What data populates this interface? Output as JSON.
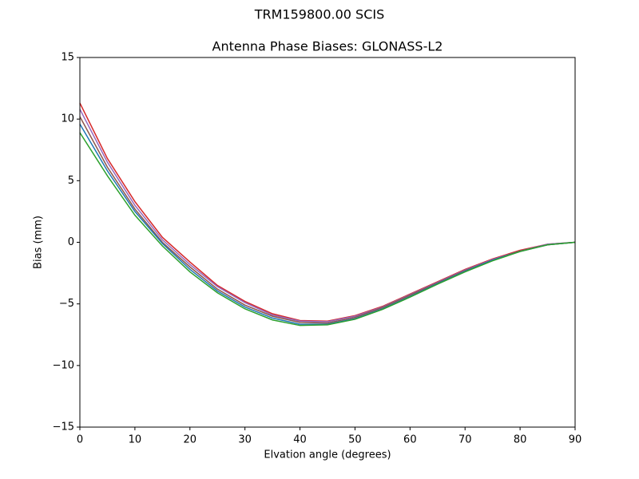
{
  "chart_data": {
    "type": "line",
    "title": "TRM159800.00    SCIS",
    "subtitle": "Antenna Phase Biases: GLONASS-L2",
    "x_label": "Elvation angle (degrees)",
    "y_label": "Bias (mm)",
    "x": [
      0,
      5,
      10,
      15,
      20,
      25,
      30,
      35,
      40,
      45,
      50,
      55,
      60,
      65,
      70,
      75,
      80,
      85,
      90
    ],
    "series": [
      {
        "color": "#d62728",
        "values": [
          11.3,
          6.8,
          3.3,
          0.4,
          -1.6,
          -3.5,
          -4.8,
          -5.8,
          -6.35,
          -6.4,
          -5.95,
          -5.2,
          -4.2,
          -3.2,
          -2.2,
          -1.35,
          -0.65,
          -0.15,
          0
        ]
      },
      {
        "color": "#9467bd",
        "values": [
          10.8,
          6.5,
          3.0,
          0.2,
          -1.8,
          -3.6,
          -4.9,
          -5.9,
          -6.4,
          -6.45,
          -6.0,
          -5.25,
          -4.25,
          -3.25,
          -2.25,
          -1.4,
          -0.7,
          -0.15,
          0
        ]
      },
      {
        "color": "#8c564b",
        "values": [
          10.2,
          6.1,
          2.7,
          0.0,
          -2.0,
          -3.8,
          -5.1,
          -6.0,
          -6.5,
          -6.55,
          -6.1,
          -5.3,
          -4.3,
          -3.3,
          -2.3,
          -1.45,
          -0.7,
          -0.2,
          0
        ]
      },
      {
        "color": "#1f77b4",
        "values": [
          9.6,
          5.8,
          2.5,
          -0.1,
          -2.2,
          -3.95,
          -5.25,
          -6.15,
          -6.65,
          -6.65,
          -6.2,
          -5.4,
          -4.4,
          -3.35,
          -2.35,
          -1.45,
          -0.75,
          -0.2,
          0
        ]
      },
      {
        "color": "#2ca02c",
        "values": [
          8.9,
          5.4,
          2.2,
          -0.3,
          -2.4,
          -4.1,
          -5.4,
          -6.3,
          -6.75,
          -6.7,
          -6.25,
          -5.45,
          -4.45,
          -3.4,
          -2.4,
          -1.5,
          -0.75,
          -0.2,
          0
        ]
      }
    ],
    "xlim": [
      0,
      90
    ],
    "xticks": [
      0,
      10,
      20,
      30,
      40,
      50,
      60,
      70,
      80,
      90
    ],
    "ylim": [
      -15,
      15
    ],
    "yticks": [
      {
        "value": -15,
        "label": "−15"
      },
      {
        "value": -10,
        "label": "−10"
      },
      {
        "value": -5,
        "label": "−5"
      },
      0,
      5,
      10,
      15
    ]
  }
}
